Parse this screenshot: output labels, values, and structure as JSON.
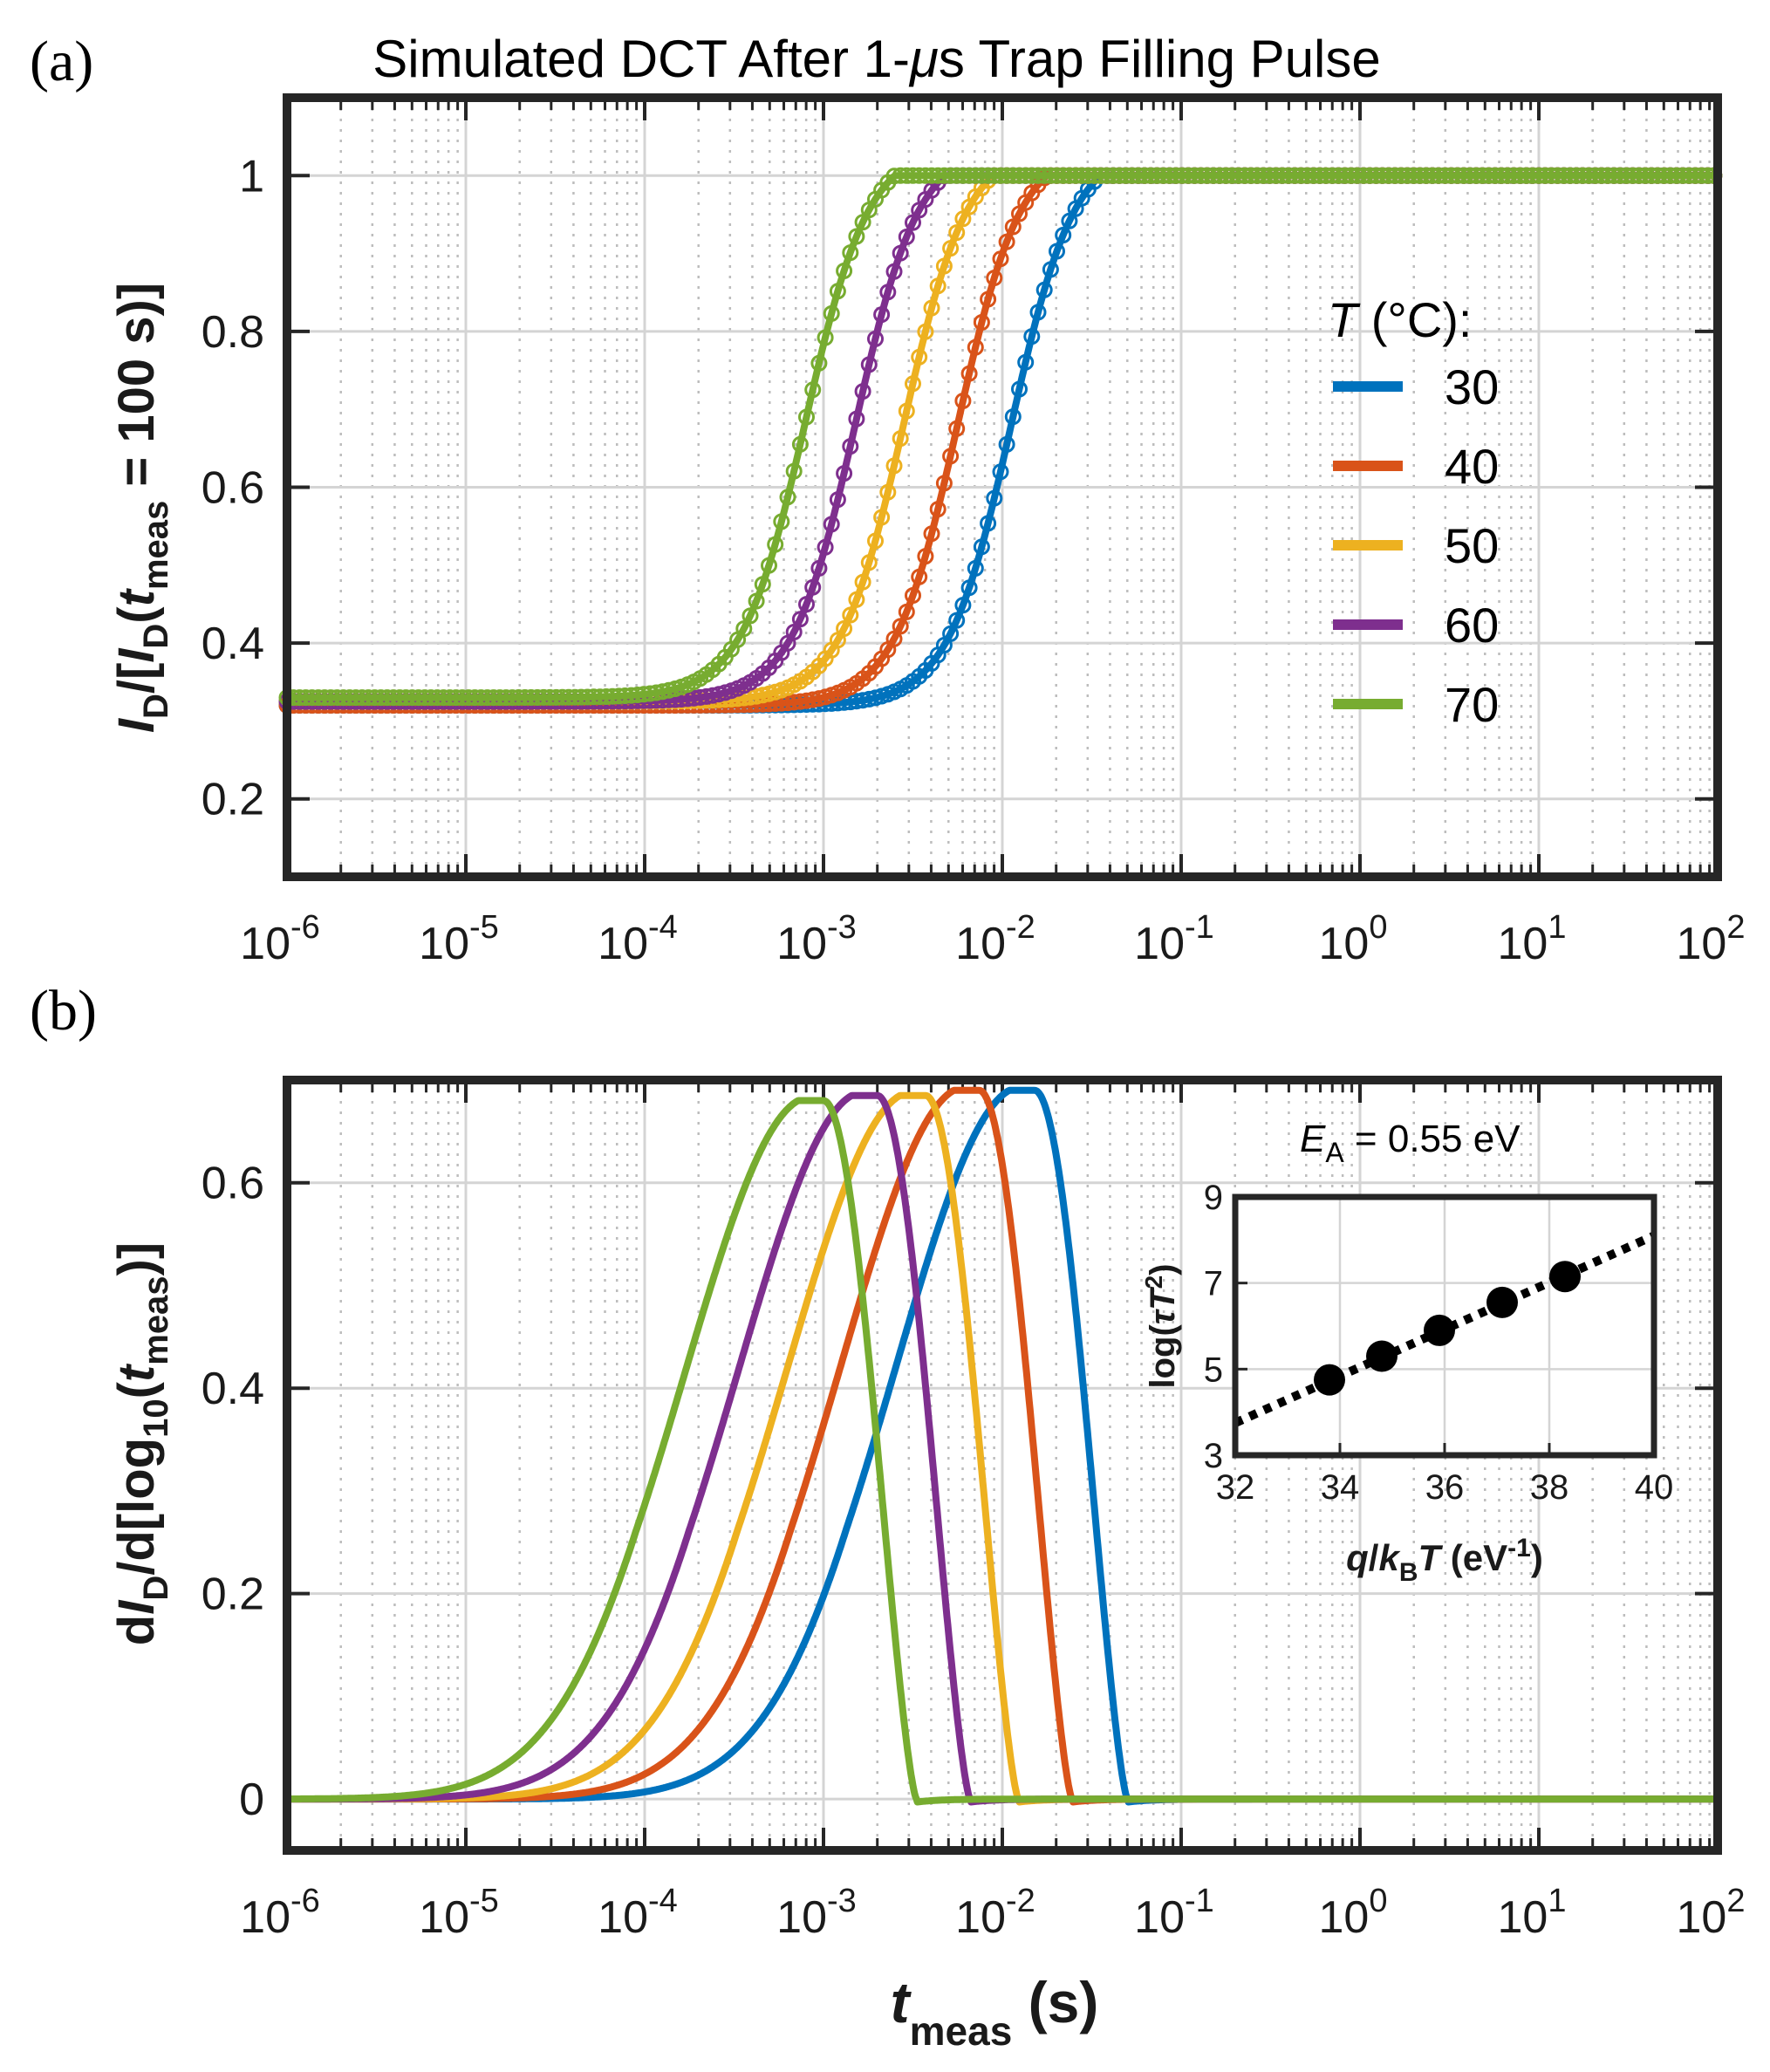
{
  "figure": {
    "panel_a_label": "(a)",
    "panel_b_label": "(b)"
  },
  "colors": {
    "30": "#0072BD",
    "40": "#D95319",
    "50": "#EDB120",
    "60": "#7E2F8E",
    "70": "#77AC30"
  },
  "chart_data": [
    {
      "id": "a",
      "type": "scatter",
      "title": "Simulated DCT After 1-μs Trap Filling Pulse",
      "title_parts": [
        "Simulated DCT After 1-",
        "μ",
        "s Trap Filling Pulse"
      ],
      "xscale": "log",
      "xlim": [
        1e-06,
        100
      ],
      "ylim": [
        0.1,
        1.1
      ],
      "xticks": [
        -6,
        -5,
        -4,
        -3,
        -2,
        -1,
        0,
        1,
        2
      ],
      "xtick_labels": [
        "10-6",
        "10-5",
        "10-4",
        "10-3",
        "10-2",
        "10-1",
        "100",
        "101",
        "102"
      ],
      "yticks": [
        0.2,
        0.4,
        0.6,
        0.8,
        1
      ],
      "ytick_labels": [
        "0.2",
        "0.4",
        "0.6",
        "0.8",
        "1"
      ],
      "ylabel": "ID/[ID(tmeas = 100 s)]",
      "ylabel_parts": [
        "I",
        "D",
        "/[",
        "I",
        "D",
        "(",
        "t",
        "meas",
        " = 100 s)]"
      ],
      "legend_title": "T (°C):",
      "legend_title_parts": [
        "T",
        " (°C):"
      ],
      "legend_position": "center-right",
      "grid": true,
      "series": [
        {
          "name": "30",
          "curve": "sigmoid",
          "baseline": 0.32,
          "center_log10": -1.95,
          "width": 0.46
        },
        {
          "name": "40",
          "curve": "sigmoid",
          "baseline": 0.32,
          "center_log10": -2.25,
          "width": 0.46
        },
        {
          "name": "50",
          "curve": "sigmoid",
          "baseline": 0.325,
          "center_log10": -2.55,
          "width": 0.46
        },
        {
          "name": "60",
          "curve": "sigmoid",
          "baseline": 0.325,
          "center_log10": -2.82,
          "width": 0.46
        },
        {
          "name": "70",
          "curve": "sigmoid",
          "baseline": 0.33,
          "center_log10": -3.1,
          "width": 0.46
        }
      ]
    },
    {
      "id": "b",
      "type": "line",
      "xscale": "log",
      "xlim": [
        1e-06,
        100
      ],
      "ylim": [
        -0.05,
        0.7
      ],
      "xticks": [
        -6,
        -5,
        -4,
        -3,
        -2,
        -1,
        0,
        1,
        2
      ],
      "xtick_labels": [
        "10-6",
        "10-5",
        "10-4",
        "10-3",
        "10-2",
        "10-1",
        "100",
        "101",
        "102"
      ],
      "yticks": [
        0,
        0.2,
        0.4,
        0.6
      ],
      "ytick_labels": [
        "0",
        "0.2",
        "0.4",
        "0.6"
      ],
      "xlabel": "tmeas (s)",
      "xlabel_parts": [
        "t",
        "meas",
        " (s)"
      ],
      "ylabel": "dID/d[log10(tmeas)]",
      "ylabel_parts": [
        "d",
        "I",
        "D",
        "/d[log",
        "10",
        "(",
        "t",
        "meas",
        ")]"
      ],
      "grid": true,
      "series": [
        {
          "name": "30",
          "peak_log10": -1.82,
          "peak": 0.69
        },
        {
          "name": "40",
          "peak_log10": -2.13,
          "peak": 0.69
        },
        {
          "name": "50",
          "peak_log10": -2.43,
          "peak": 0.685
        },
        {
          "name": "60",
          "peak_log10": -2.7,
          "peak": 0.685
        },
        {
          "name": "70",
          "peak_log10": -3.0,
          "peak": 0.68
        }
      ]
    },
    {
      "id": "inset",
      "type": "scatter",
      "annotation": "EA = 0.55 eV",
      "annotation_parts": [
        "E",
        "A",
        " = 0.55 eV"
      ],
      "xlim": [
        32,
        40
      ],
      "ylim": [
        3,
        9
      ],
      "xticks": [
        32,
        34,
        36,
        38,
        40
      ],
      "yticks": [
        3,
        5,
        7,
        9
      ],
      "xlabel": "q/kBT (eV-1)",
      "xlabel_parts": [
        "q",
        "/",
        "k",
        "B",
        "T",
        " (eV",
        "-1",
        ")"
      ],
      "ylabel": "log(τT2)",
      "ylabel_parts": [
        "log(",
        "τ",
        "T",
        "2",
        ")"
      ],
      "points": [
        {
          "x": 33.8,
          "y": 4.75
        },
        {
          "x": 34.8,
          "y": 5.3
        },
        {
          "x": 35.9,
          "y": 5.9
        },
        {
          "x": 37.1,
          "y": 6.55
        },
        {
          "x": 38.3,
          "y": 7.15
        }
      ],
      "fit_line": {
        "x": [
          32,
          40
        ],
        "y": [
          3.75,
          8.1
        ],
        "style": "dotted"
      }
    }
  ]
}
